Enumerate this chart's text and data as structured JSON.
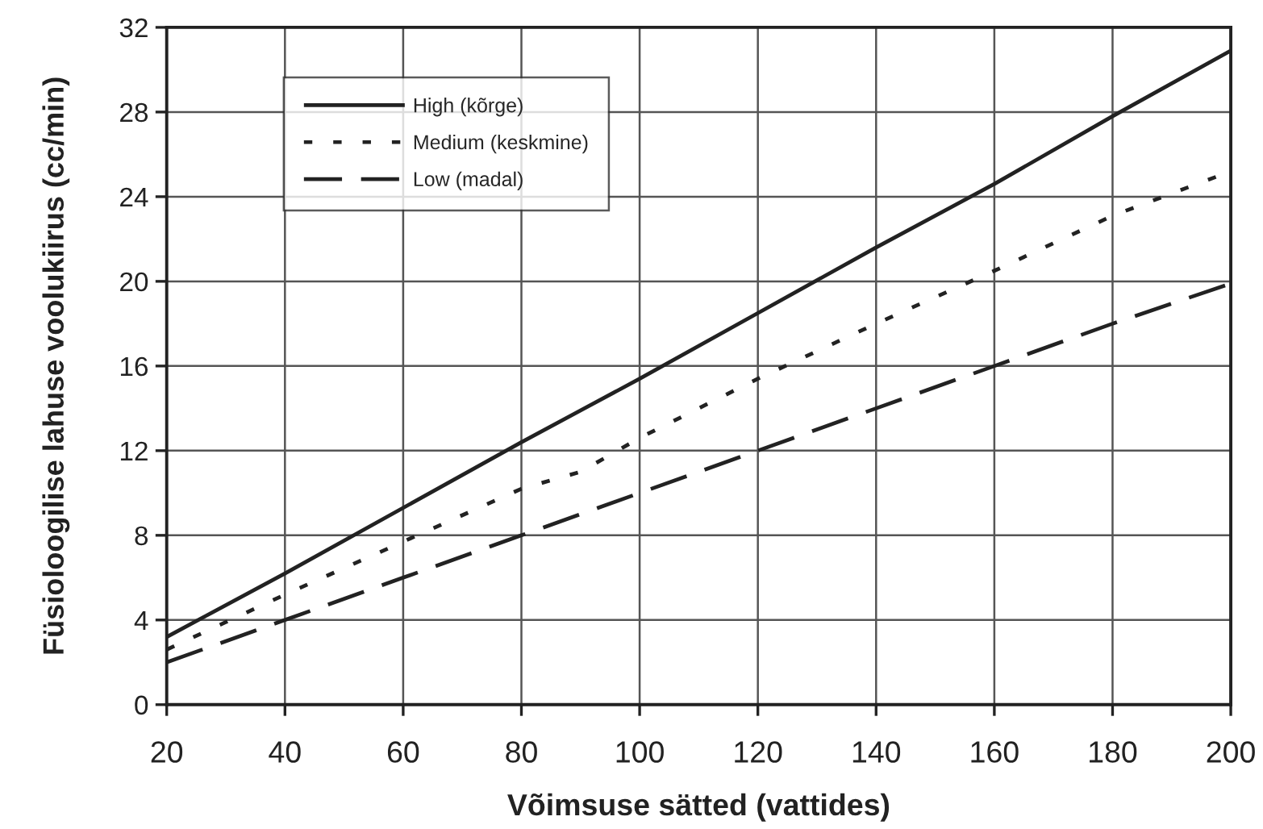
{
  "chart_data": {
    "type": "line",
    "xlabel": "Võimsuse sätted (vattides)",
    "ylabel": "Füsioloogilise lahuse voolukiirus (cc/min)",
    "xlim": [
      20,
      200
    ],
    "ylim": [
      0,
      32
    ],
    "xticks": [
      20,
      40,
      60,
      80,
      100,
      120,
      140,
      160,
      180,
      200
    ],
    "yticks": [
      0,
      4,
      8,
      12,
      16,
      20,
      24,
      28,
      32
    ],
    "grid": true,
    "legend": "top left",
    "series": [
      {
        "name": "High (kõrge)",
        "color": "#222222",
        "line_style": "solid",
        "x": [
          20,
          40,
          60,
          80,
          100,
          120,
          140,
          160,
          180,
          200
        ],
        "values": [
          3.2,
          6.2,
          9.3,
          12.4,
          15.4,
          18.5,
          21.6,
          24.6,
          27.8,
          30.9
        ]
      },
      {
        "name": "Medium (keskmine)",
        "color": "#222222",
        "line_style": "dotted",
        "x": [
          20,
          30,
          40,
          60,
          80,
          90,
          100,
          120,
          140,
          160,
          180,
          200
        ],
        "values": [
          2.6,
          3.9,
          5.2,
          7.7,
          10.2,
          11.0,
          12.6,
          15.4,
          18.0,
          20.5,
          23.1,
          25.2
        ]
      },
      {
        "name": "Low (madal)",
        "color": "#222222",
        "line_style": "dashed",
        "x": [
          20,
          40,
          60,
          80,
          90,
          100,
          120,
          140,
          160,
          180,
          200
        ],
        "values": [
          2.0,
          4.0,
          6.0,
          8.0,
          9.0,
          10.0,
          12.0,
          14.0,
          16.0,
          18.0,
          19.9
        ]
      }
    ]
  }
}
